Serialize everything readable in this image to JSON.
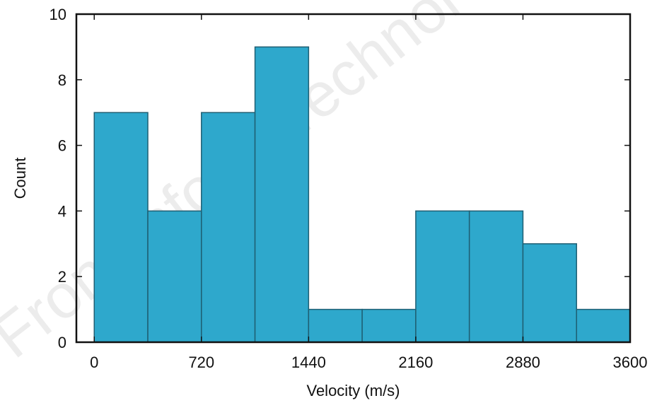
{
  "chart_data": {
    "type": "bar",
    "title": "",
    "xlabel": "Velocity (m/s)",
    "ylabel": "Count",
    "xlim": [
      -120,
      3600
    ],
    "ylim": [
      0,
      10
    ],
    "xticks": [
      0,
      720,
      1440,
      2160,
      2880,
      3600
    ],
    "yticks": [
      0,
      2,
      4,
      6,
      8,
      10
    ],
    "bin_width": 360,
    "bins": [
      {
        "start": 0,
        "end": 360,
        "count": 7
      },
      {
        "start": 360,
        "end": 720,
        "count": 4
      },
      {
        "start": 720,
        "end": 1080,
        "count": 7
      },
      {
        "start": 1080,
        "end": 1440,
        "count": 9
      },
      {
        "start": 1440,
        "end": 1800,
        "count": 1
      },
      {
        "start": 1800,
        "end": 2160,
        "count": 1
      },
      {
        "start": 2160,
        "end": 2520,
        "count": 4
      },
      {
        "start": 2520,
        "end": 2880,
        "count": 4
      },
      {
        "start": 2880,
        "end": 3240,
        "count": 3
      },
      {
        "start": 3240,
        "end": 3600,
        "count": 1
      }
    ],
    "bar_color": "#2ea8cc",
    "bar_edge_color": "#1f5f73",
    "grid": false,
    "legend": "none"
  },
  "watermark": "Front Inform Technol Electr"
}
